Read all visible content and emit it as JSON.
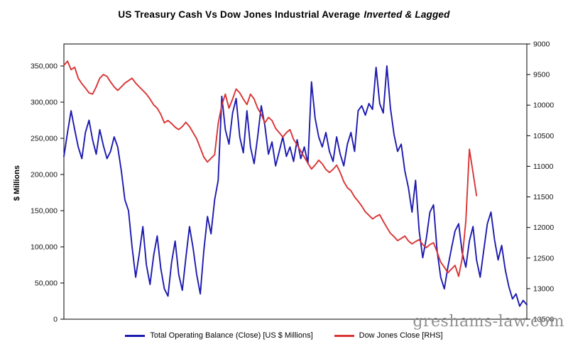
{
  "title": {
    "main": "US Treasury Cash Vs Dow Jones Industrial Average",
    "emphasis": "Inverted & Lagged"
  },
  "watermark": "greshams-law.com",
  "chart_data": {
    "type": "line",
    "title": "US Treasury Cash Vs Dow Jones Industrial Average Inverted & Lagged",
    "grid": false,
    "legend_position": "bottom",
    "left_axis": {
      "label": "$ Millions",
      "min": 0,
      "max": 350000,
      "ticks": [
        0,
        50000,
        100000,
        150000,
        200000,
        250000,
        300000,
        350000
      ],
      "tick_labels": [
        "0",
        "50,000",
        "100,000",
        "150,000",
        "200,000",
        "250,000",
        "300,000",
        "350,000"
      ]
    },
    "right_axis": {
      "label": "",
      "min": 9000,
      "max": 13500,
      "inverted": true,
      "ticks": [
        9000,
        9500,
        10000,
        10500,
        11000,
        11500,
        12000,
        12500,
        13000,
        13500
      ],
      "tick_labels": [
        "9000",
        "9500",
        "10000",
        "10500",
        "11000",
        "11500",
        "12000",
        "12500",
        "13000",
        "13500"
      ]
    },
    "x_axis": {
      "label": "",
      "tick_labels": []
    },
    "series": [
      {
        "name": "Total Operating Balance (Close) [US $ Millions]",
        "axis": "left",
        "color": "#1c1aae",
        "values": [
          225000,
          258000,
          288000,
          262000,
          238000,
          222000,
          258000,
          275000,
          248000,
          228000,
          262000,
          240000,
          222000,
          232000,
          252000,
          238000,
          205000,
          165000,
          150000,
          100000,
          58000,
          90000,
          128000,
          75000,
          48000,
          88000,
          115000,
          70000,
          42000,
          32000,
          78000,
          108000,
          62000,
          40000,
          85000,
          128000,
          98000,
          62000,
          35000,
          95000,
          142000,
          118000,
          165000,
          192000,
          308000,
          262000,
          242000,
          285000,
          305000,
          252000,
          230000,
          288000,
          238000,
          215000,
          252000,
          295000,
          268000,
          228000,
          245000,
          212000,
          232000,
          252000,
          225000,
          238000,
          218000,
          248000,
          222000,
          238000,
          215000,
          328000,
          278000,
          252000,
          238000,
          258000,
          232000,
          218000,
          252000,
          228000,
          212000,
          242000,
          258000,
          232000,
          288000,
          295000,
          282000,
          298000,
          290000,
          348000,
          298000,
          285000,
          350000,
          292000,
          255000,
          232000,
          242000,
          205000,
          182000,
          148000,
          192000,
          122000,
          85000,
          112000,
          148000,
          158000,
          95000,
          58000,
          42000,
          72000,
          98000,
          122000,
          132000,
          92000,
          72000,
          108000,
          128000,
          82000,
          58000,
          95000,
          132000,
          148000,
          110000,
          82000,
          102000,
          68000,
          45000,
          28000,
          35000,
          18000,
          26000,
          20000
        ]
      },
      {
        "name": "Dow Jones Close [RHS]",
        "axis": "right",
        "color": "#d93434",
        "values": [
          9350,
          9280,
          9420,
          9380,
          9560,
          9650,
          9720,
          9800,
          9820,
          9700,
          9560,
          9500,
          9530,
          9620,
          9700,
          9760,
          9700,
          9640,
          9600,
          9560,
          9640,
          9700,
          9760,
          9820,
          9900,
          9995,
          10050,
          10150,
          10290,
          10250,
          10300,
          10360,
          10400,
          10350,
          10280,
          10350,
          10450,
          10550,
          10700,
          10850,
          10930,
          10870,
          10810,
          10300,
          10000,
          9820,
          10050,
          9900,
          9735,
          9800,
          9900,
          9990,
          9820,
          9900,
          10050,
          10150,
          10290,
          10200,
          10250,
          10380,
          10450,
          10520,
          10450,
          10400,
          10560,
          10650,
          10750,
          10850,
          10950,
          11045,
          10980,
          10900,
          10960,
          11050,
          11100,
          11050,
          10980,
          11100,
          11250,
          11350,
          11400,
          11500,
          11570,
          11650,
          11745,
          11800,
          11860,
          11820,
          11790,
          11900,
          12000,
          12095,
          12150,
          12215,
          12180,
          12140,
          12220,
          12270,
          12230,
          12200,
          12280,
          12330,
          12280,
          12250,
          12400,
          12565,
          12650,
          12740,
          12680,
          12620,
          12800,
          12505,
          11900,
          10720,
          11100,
          11480,
          null,
          null,
          null,
          null,
          null,
          null,
          null,
          null,
          null,
          null,
          null,
          null,
          null,
          null
        ]
      }
    ]
  }
}
